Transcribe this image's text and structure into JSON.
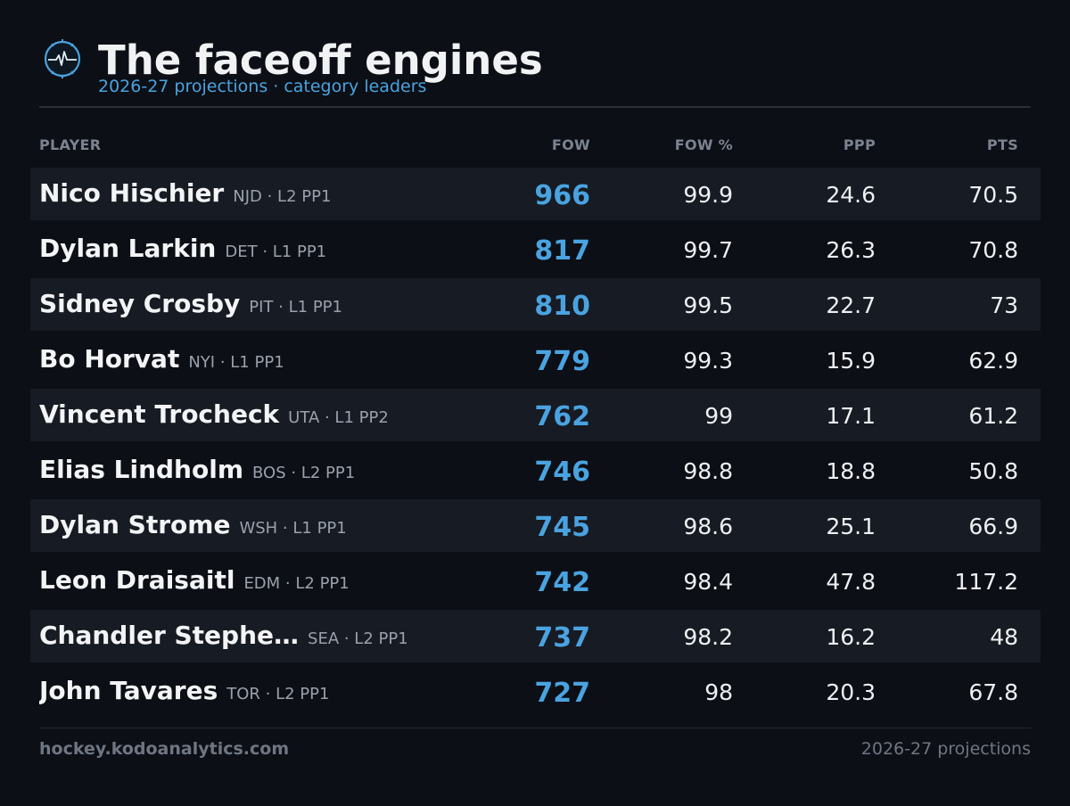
{
  "header": {
    "title": "The faceoff engines",
    "subtitle": "2026-27 projections · category leaders",
    "logo_icon": "faceoff-dot-pulse-icon"
  },
  "columns": {
    "player": "PLAYER",
    "fow": "FOW",
    "fow_pct": "FOW %",
    "ppp": "PPP",
    "pts": "PTS"
  },
  "rows": [
    {
      "name": "Nico Hischier",
      "meta": "NJD · L2 PP1",
      "fow": "966",
      "fow_pct": "99.9",
      "ppp": "24.6",
      "pts": "70.5"
    },
    {
      "name": "Dylan Larkin",
      "meta": "DET · L1 PP1",
      "fow": "817",
      "fow_pct": "99.7",
      "ppp": "26.3",
      "pts": "70.8"
    },
    {
      "name": "Sidney Crosby",
      "meta": "PIT · L1 PP1",
      "fow": "810",
      "fow_pct": "99.5",
      "ppp": "22.7",
      "pts": "73"
    },
    {
      "name": "Bo Horvat",
      "meta": "NYI · L1 PP1",
      "fow": "779",
      "fow_pct": "99.3",
      "ppp": "15.9",
      "pts": "62.9"
    },
    {
      "name": "Vincent Trocheck",
      "meta": "UTA · L1 PP2",
      "fow": "762",
      "fow_pct": "99",
      "ppp": "17.1",
      "pts": "61.2"
    },
    {
      "name": "Elias Lindholm",
      "meta": "BOS · L2 PP1",
      "fow": "746",
      "fow_pct": "98.8",
      "ppp": "18.8",
      "pts": "50.8"
    },
    {
      "name": "Dylan Strome",
      "meta": "WSH · L1 PP1",
      "fow": "745",
      "fow_pct": "98.6",
      "ppp": "25.1",
      "pts": "66.9"
    },
    {
      "name": "Leon Draisaitl",
      "meta": "EDM · L2 PP1",
      "fow": "742",
      "fow_pct": "98.4",
      "ppp": "47.8",
      "pts": "117.2"
    },
    {
      "name": "Chandler Stephe…",
      "meta": "SEA · L2 PP1",
      "fow": "737",
      "fow_pct": "98.2",
      "ppp": "16.2",
      "pts": "48"
    },
    {
      "name": "John Tavares",
      "meta": "TOR · L2 PP1",
      "fow": "727",
      "fow_pct": "98",
      "ppp": "20.3",
      "pts": "67.8"
    }
  ],
  "footer": {
    "site": "hockey.kodoanalytics.com",
    "note": "2026-27 projections"
  },
  "colors": {
    "background": "#0c0f15",
    "accent": "#4aa3e0",
    "row_shade": "#171b23"
  }
}
